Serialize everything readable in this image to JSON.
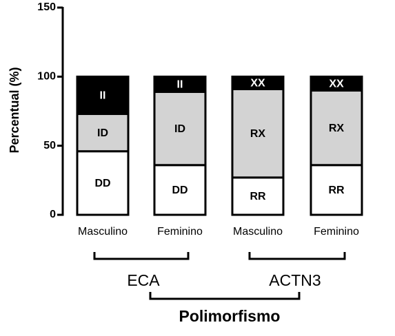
{
  "chart_data": {
    "type": "stacked-bar",
    "y_label": "Percentual (%)",
    "x_label": "Polimorfismo",
    "categories": [
      "Masculino",
      "Feminino",
      "Masculino",
      "Feminino"
    ],
    "groups": [
      {
        "name": "ECA",
        "span": [
          0,
          1
        ]
      },
      {
        "name": "ACTN3",
        "span": [
          2,
          3
        ]
      }
    ],
    "series": [
      {
        "color": "#ffffff",
        "values": [
          46,
          36,
          27,
          36
        ],
        "labels": [
          "DD",
          "DD",
          "RR",
          "RR"
        ]
      },
      {
        "color": "#d3d3d3",
        "values": [
          27,
          53,
          64,
          54
        ],
        "labels": [
          "ID",
          "ID",
          "RX",
          "RX"
        ]
      },
      {
        "color": "#000000",
        "values": [
          27,
          11,
          9,
          10
        ],
        "labels": [
          "II",
          "II",
          "XX",
          "XX"
        ]
      }
    ],
    "ylim": [
      0,
      150
    ],
    "yticks": [
      0,
      50,
      100,
      150
    ]
  }
}
